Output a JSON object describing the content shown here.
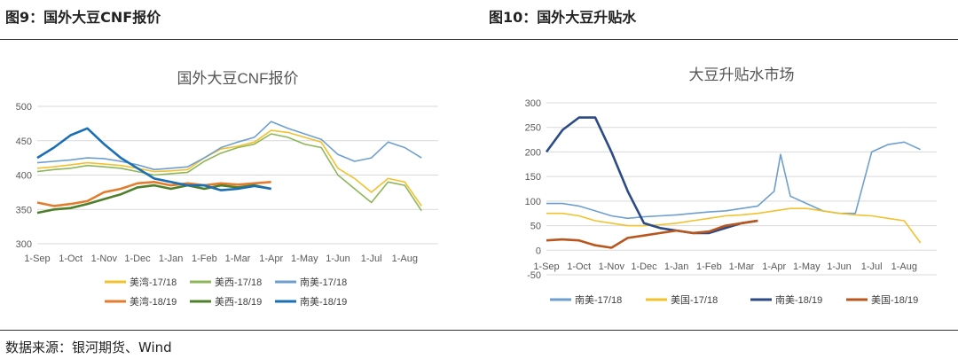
{
  "figures": {
    "left_heading": "图9：国外大豆CNF报价",
    "right_heading": "图10：国外大豆升贴水",
    "source": "数据来源：银河期货、Wind"
  },
  "colors": {
    "meiwan_1718": "#F2C12E",
    "meixi_1718": "#8DB65A",
    "nanmei_1718": "#6E9FCF",
    "meiwan_1819": "#E57C2C",
    "meixi_1819": "#4F7F2A",
    "nanmei_1819": "#1B6FB5",
    "us_1718": "#F2C12E",
    "nanmei_1819_r": "#2C4A86",
    "us_1819": "#B8561E"
  },
  "chart_data": [
    {
      "type": "line",
      "title": "国外大豆CNF报价",
      "x_ticks": [
        "1-Sep",
        "1-Oct",
        "1-Nov",
        "1-Dec",
        "1-Jan",
        "1-Feb",
        "1-Mar",
        "1-Apr",
        "1-May",
        "1-Jun",
        "1-Jul",
        "1-Aug"
      ],
      "x_range": [
        0,
        12
      ],
      "ylim": [
        300,
        500
      ],
      "y_ticks": [
        300,
        350,
        400,
        450,
        500
      ],
      "grid": "horizontal",
      "legend_position": "bottom",
      "series": [
        {
          "name": "美湾-17/18",
          "color_key": "meiwan_1718",
          "x": [
            0,
            0.5,
            1,
            1.5,
            2,
            2.5,
            3,
            3.5,
            4,
            4.5,
            5,
            5.5,
            6,
            6.5,
            7,
            7.5,
            8,
            8.5,
            9,
            9.5,
            10,
            10.5,
            11,
            11.5
          ],
          "y": [
            410,
            412,
            415,
            418,
            416,
            414,
            410,
            405,
            406,
            408,
            425,
            438,
            442,
            448,
            465,
            462,
            455,
            448,
            410,
            395,
            375,
            395,
            390,
            355
          ]
        },
        {
          "name": "美西-17/18",
          "color_key": "meixi_1718",
          "x": [
            0,
            0.5,
            1,
            1.5,
            2,
            2.5,
            3,
            3.5,
            4,
            4.5,
            5,
            5.5,
            6,
            6.5,
            7,
            7.5,
            8,
            8.5,
            9,
            9.5,
            10,
            10.5,
            11,
            11.5
          ],
          "y": [
            405,
            408,
            410,
            414,
            412,
            410,
            405,
            400,
            402,
            404,
            420,
            432,
            440,
            445,
            460,
            455,
            445,
            440,
            400,
            380,
            360,
            390,
            385,
            348
          ]
        },
        {
          "name": "南美-17/18",
          "color_key": "nanmei_1718",
          "x": [
            0,
            0.5,
            1,
            1.5,
            2,
            2.5,
            3,
            3.5,
            4,
            4.5,
            5,
            5.5,
            6,
            6.5,
            7,
            7.5,
            8,
            8.5,
            9,
            9.5,
            10,
            10.5,
            11,
            11.5
          ],
          "y": [
            418,
            420,
            422,
            425,
            424,
            420,
            415,
            408,
            410,
            412,
            425,
            440,
            448,
            455,
            478,
            468,
            460,
            452,
            430,
            420,
            425,
            448,
            440,
            425
          ]
        },
        {
          "name": "美湾-18/19",
          "color_key": "meiwan_1819",
          "x": [
            0,
            0.5,
            1,
            1.5,
            2,
            2.5,
            3,
            3.5,
            4,
            4.5,
            5,
            5.5,
            6,
            6.5,
            7
          ],
          "y": [
            360,
            355,
            358,
            362,
            375,
            380,
            388,
            390,
            385,
            388,
            385,
            388,
            386,
            388,
            390
          ]
        },
        {
          "name": "美西-18/19",
          "color_key": "meixi_1819",
          "x": [
            0,
            0.5,
            1,
            1.5,
            2,
            2.5,
            3,
            3.5,
            4,
            4.5,
            5,
            5.5,
            6,
            6.5,
            7
          ],
          "y": [
            345,
            350,
            352,
            358,
            365,
            372,
            382,
            385,
            380,
            385,
            380,
            385,
            382,
            385,
            380
          ]
        },
        {
          "name": "南美-18/19",
          "color_key": "nanmei_1819",
          "x": [
            0,
            0.5,
            1,
            1.5,
            2,
            2.5,
            3,
            3.5,
            4,
            4.5,
            5,
            5.5,
            6,
            6.5,
            7
          ],
          "y": [
            425,
            440,
            458,
            468,
            445,
            425,
            410,
            395,
            390,
            385,
            385,
            378,
            380,
            384,
            380
          ]
        }
      ]
    },
    {
      "type": "line",
      "title": "大豆升贴水市场",
      "x_ticks": [
        "1-Sep",
        "1-Oct",
        "1-Nov",
        "1-Dec",
        "1-Jan",
        "1-Feb",
        "1-Mar",
        "1-Apr",
        "1-May",
        "1-Jun",
        "1-Jul",
        "1-Aug"
      ],
      "x_range": [
        0,
        12
      ],
      "ylim": [
        -50,
        300
      ],
      "y_ticks": [
        -50,
        0,
        50,
        100,
        150,
        200,
        250,
        300
      ],
      "grid": "horizontal",
      "legend_position": "bottom",
      "series": [
        {
          "name": "南美-17/18",
          "color_key": "nanmei_1718",
          "x": [
            0,
            0.5,
            1,
            1.5,
            2,
            2.5,
            3,
            3.5,
            4,
            4.5,
            5,
            5.5,
            6,
            6.5,
            7,
            7.2,
            7.5,
            8,
            8.5,
            9,
            9.5,
            10,
            10.5,
            11,
            11.5
          ],
          "y": [
            95,
            95,
            90,
            80,
            70,
            65,
            68,
            70,
            72,
            75,
            78,
            80,
            85,
            90,
            120,
            195,
            110,
            95,
            80,
            75,
            75,
            200,
            215,
            220,
            205
          ]
        },
        {
          "name": "美国-17/18",
          "color_key": "us_1718",
          "x": [
            0,
            0.5,
            1,
            1.5,
            2,
            2.5,
            3,
            3.5,
            4,
            4.5,
            5,
            5.5,
            6,
            6.5,
            7,
            7.5,
            8,
            8.5,
            9,
            9.5,
            10,
            10.5,
            11,
            11.5
          ],
          "y": [
            75,
            75,
            70,
            60,
            55,
            50,
            50,
            52,
            55,
            60,
            65,
            70,
            72,
            75,
            80,
            85,
            85,
            80,
            75,
            72,
            70,
            65,
            60,
            15
          ]
        },
        {
          "name": "南美-18/19",
          "color_key": "nanmei_1819_r",
          "x": [
            0,
            0.5,
            1,
            1.5,
            2,
            2.5,
            3,
            3.5,
            4,
            4.5,
            5,
            5.5,
            6,
            6.5
          ],
          "y": [
            200,
            245,
            270,
            270,
            200,
            120,
            55,
            45,
            40,
            35,
            35,
            45,
            55,
            60
          ]
        },
        {
          "name": "美国-18/19",
          "color_key": "us_1819",
          "x": [
            0,
            0.5,
            1,
            1.5,
            2,
            2.5,
            3,
            3.5,
            4,
            4.5,
            5,
            5.5,
            6,
            6.5
          ],
          "y": [
            20,
            22,
            20,
            10,
            5,
            25,
            30,
            35,
            40,
            35,
            38,
            50,
            55,
            60
          ]
        }
      ]
    }
  ]
}
